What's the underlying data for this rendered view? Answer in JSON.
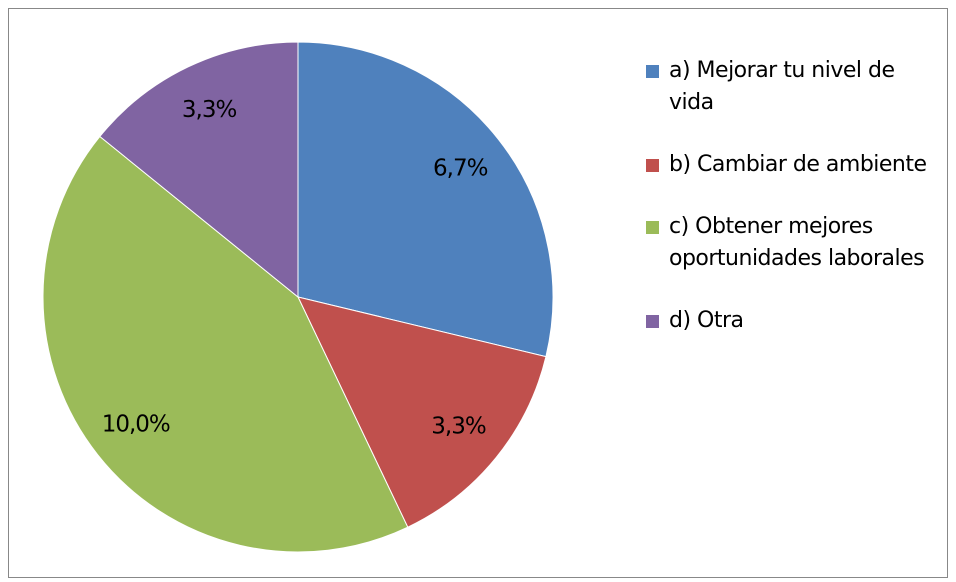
{
  "chart_data": {
    "type": "pie",
    "categories": [
      "a) Mejorar tu nivel de vida",
      "b) Cambiar de ambiente",
      "c) Obtener mejores oportunidades laborales",
      "d) Otra"
    ],
    "values": [
      6.7,
      3.3,
      10.0,
      3.3
    ],
    "value_labels": [
      "6,7%",
      "3,3%",
      "10,0%",
      "3,3%"
    ],
    "colors": [
      "#4f81bd",
      "#c0504d",
      "#9bbb59",
      "#8064a2"
    ],
    "legend": "right"
  }
}
